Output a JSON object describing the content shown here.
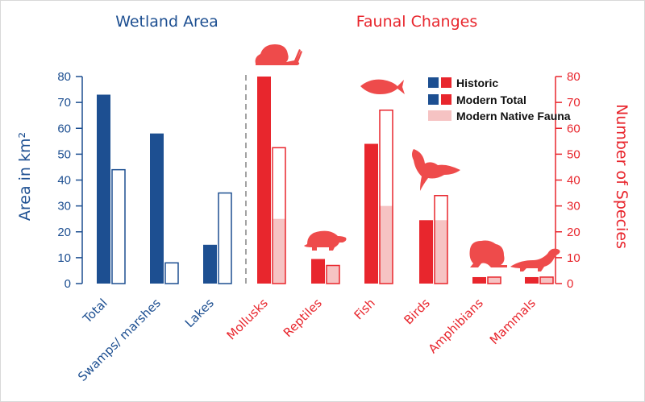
{
  "colors": {
    "blue": "#1d4f91",
    "red": "#e8262d",
    "light_red": "#f6c3c3",
    "animal": "#ee4b4b"
  },
  "legend": {
    "historic": "Historic",
    "modern_total": "Modern Total",
    "modern_native": "Modern Native Fauna"
  },
  "chart_data": [
    {
      "type": "bar",
      "title": "Wetland Area",
      "ylabel": "Area in km²",
      "ylim": [
        0,
        80
      ],
      "yticks": [
        0,
        10,
        20,
        30,
        40,
        50,
        60,
        70,
        80
      ],
      "categories": [
        "Total",
        "Swamps/ marshes",
        "Lakes"
      ],
      "series": [
        {
          "name": "Historic",
          "values": [
            73,
            58,
            15
          ]
        },
        {
          "name": "Modern Total",
          "values": [
            44,
            8,
            35
          ]
        }
      ]
    },
    {
      "type": "bar",
      "title": "Faunal Changes",
      "ylabel": "Number of Species",
      "ylim": [
        0,
        80
      ],
      "yticks": [
        0,
        10,
        20,
        30,
        40,
        50,
        60,
        70,
        80
      ],
      "categories": [
        "Mollusks",
        "Reptiles",
        "Fish",
        "Birds",
        "Amphibians",
        "Mammals"
      ],
      "series": [
        {
          "name": "Historic",
          "values": [
            80,
            9.5,
            54,
            24.5,
            2.5,
            2.5
          ]
        },
        {
          "name": "Modern Total",
          "values": [
            52.5,
            7,
            67,
            34,
            2.5,
            2.5
          ]
        },
        {
          "name": "Modern Native Fauna",
          "values": [
            25,
            7,
            30,
            24.5,
            2.5,
            2.5
          ]
        }
      ],
      "icons": [
        "snail-icon",
        "turtle-icon",
        "fish-icon",
        "bird-icon",
        "frog-icon",
        "otter-icon"
      ]
    }
  ]
}
